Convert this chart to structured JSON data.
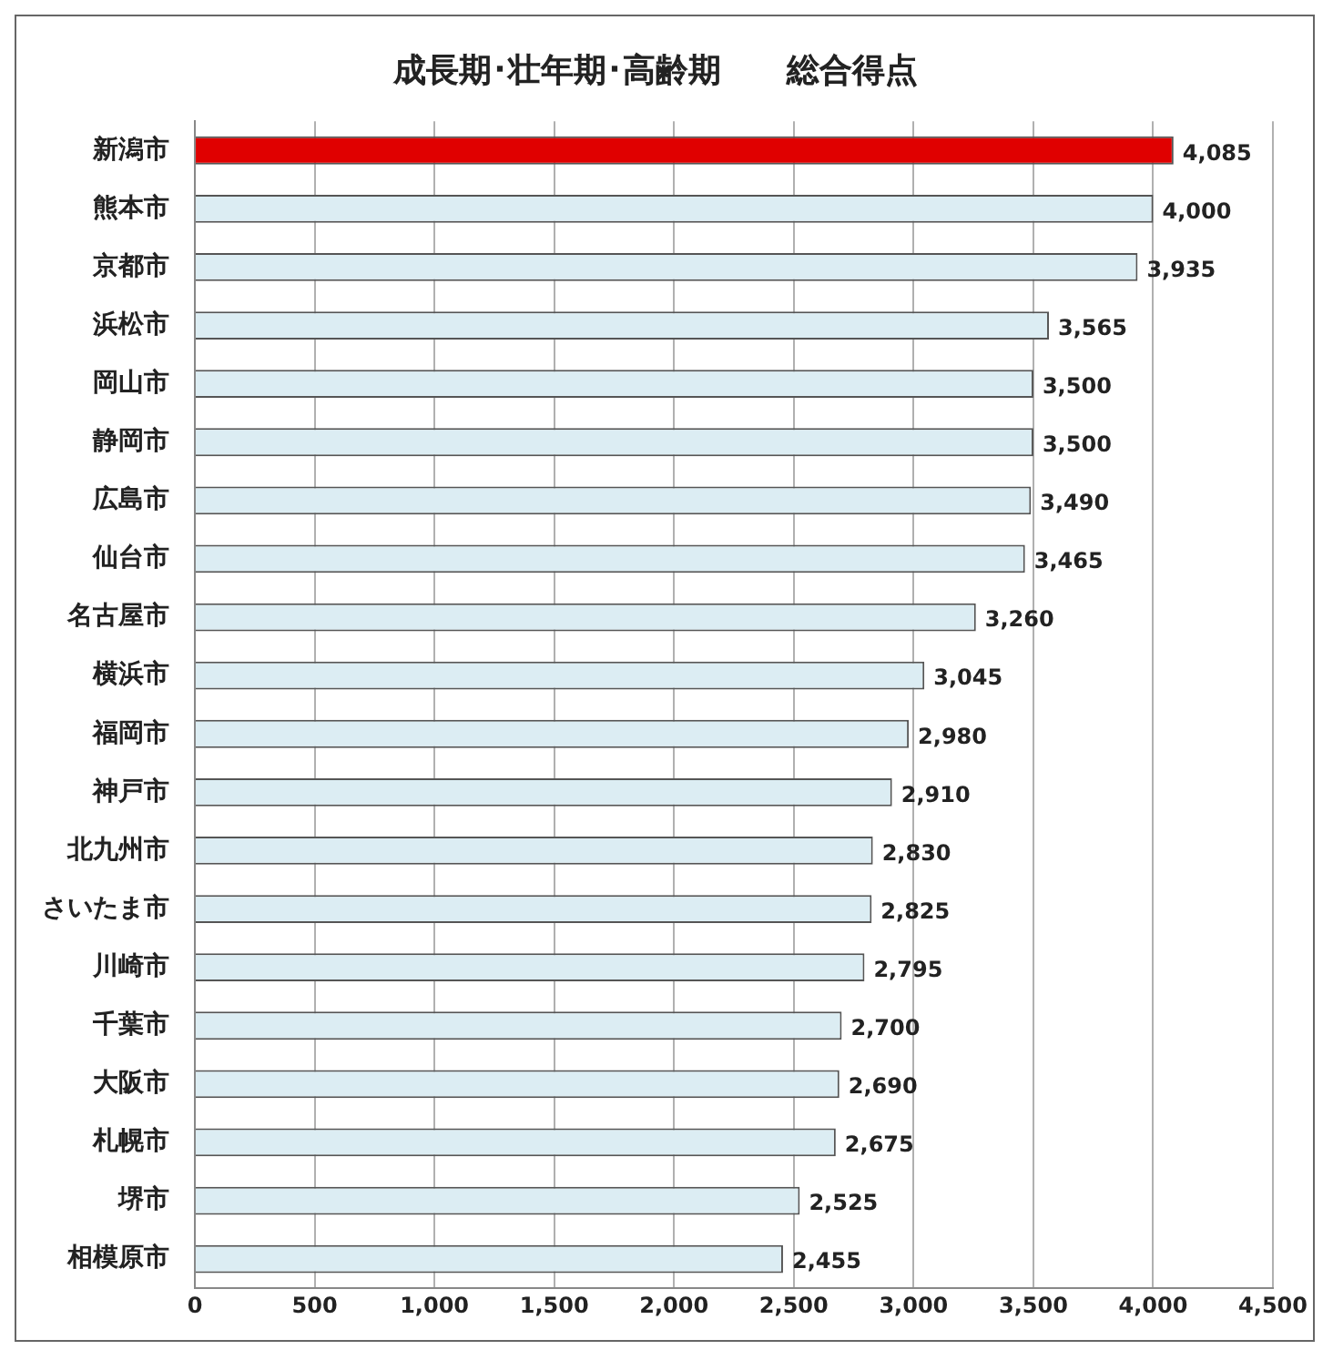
{
  "chart_data": {
    "type": "bar",
    "orientation": "horizontal",
    "title": "成長期･壮年期･高齢期　　総合得点",
    "categories": [
      "新潟市",
      "熊本市",
      "京都市",
      "浜松市",
      "岡山市",
      "静岡市",
      "広島市",
      "仙台市",
      "名古屋市",
      "横浜市",
      "福岡市",
      "神戸市",
      "北九州市",
      "さいたま市",
      "川崎市",
      "千葉市",
      "大阪市",
      "札幌市",
      "堺市",
      "相模原市"
    ],
    "values": [
      4085,
      4000,
      3935,
      3565,
      3500,
      3500,
      3490,
      3465,
      3260,
      3045,
      2980,
      2910,
      2830,
      2825,
      2795,
      2700,
      2690,
      2675,
      2525,
      2455
    ],
    "value_labels": [
      "4,085",
      "4,000",
      "3,935",
      "3,565",
      "3,500",
      "3,500",
      "3,490",
      "3,465",
      "3,260",
      "3,045",
      "2,980",
      "2,910",
      "2,830",
      "2,825",
      "2,795",
      "2,700",
      "2,690",
      "2,675",
      "2,525",
      "2,455"
    ],
    "colors": [
      "#e00000",
      "#dcedf3",
      "#dcedf3",
      "#dcedf3",
      "#dcedf3",
      "#dcedf3",
      "#dcedf3",
      "#dcedf3",
      "#dcedf3",
      "#dcedf3",
      "#dcedf3",
      "#dcedf3",
      "#dcedf3",
      "#dcedf3",
      "#dcedf3",
      "#dcedf3",
      "#dcedf3",
      "#dcedf3",
      "#dcedf3",
      "#dcedf3"
    ],
    "xlim": [
      0,
      4500
    ],
    "xticks": [
      0,
      500,
      {
        "value": 1000,
        "label": "1,000"
      },
      {
        "value": 1500,
        "label": "1,500"
      },
      {
        "value": 2000,
        "label": "2,000"
      },
      {
        "value": 2500,
        "label": "2,500"
      },
      {
        "value": 3000,
        "label": "3,000"
      },
      {
        "value": 3500,
        "label": "3,500"
      },
      {
        "value": 4000,
        "label": "4,000"
      },
      {
        "value": 4500,
        "label": "4,500"
      }
    ],
    "grid": "x"
  }
}
